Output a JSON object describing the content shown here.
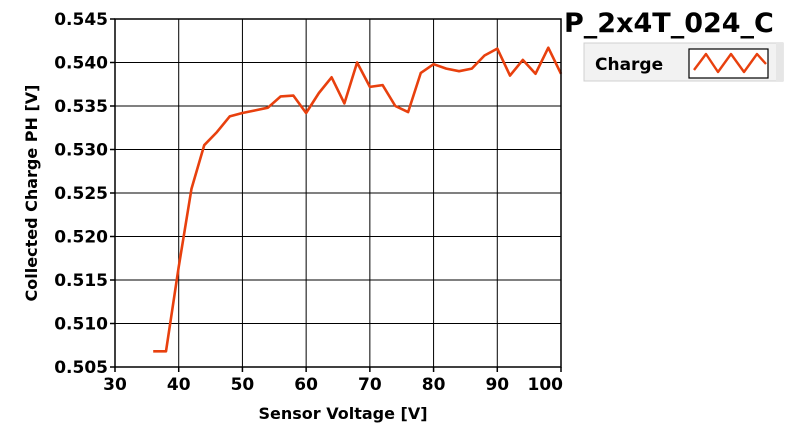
{
  "chart_data": {
    "type": "line",
    "title": "P_2x4T_024_C",
    "xlabel": "Sensor Voltage [V]",
    "ylabel": "Collected Charge PH [V]",
    "xlim": [
      30,
      100
    ],
    "ylim": [
      0.505,
      0.545
    ],
    "xticks": [
      "30",
      "40",
      "50",
      "60",
      "70",
      "80",
      "90",
      "100"
    ],
    "yticks": [
      "0.505",
      "0.510",
      "0.515",
      "0.520",
      "0.525",
      "0.530",
      "0.535",
      "0.540",
      "0.545"
    ],
    "grid": true,
    "legend_position": "top-right",
    "series": [
      {
        "name": "Charge",
        "color": "#e8400e",
        "x": [
          36,
          38,
          40,
          42,
          44,
          46,
          48,
          50,
          52,
          54,
          56,
          58,
          60,
          62,
          64,
          66,
          68,
          70,
          72,
          74,
          76,
          78,
          80,
          82,
          84,
          86,
          88,
          90,
          92,
          94,
          96,
          98,
          100
        ],
        "y": [
          0.5068,
          0.5068,
          0.5165,
          0.5255,
          0.5305,
          0.532,
          0.5338,
          0.5342,
          0.5345,
          0.5348,
          0.5361,
          0.5362,
          0.5342,
          0.5365,
          0.5383,
          0.5353,
          0.54,
          0.5372,
          0.5374,
          0.535,
          0.5343,
          0.5388,
          0.5398,
          0.5393,
          0.539,
          0.5393,
          0.5408,
          0.5416,
          0.5385,
          0.5403,
          0.5387,
          0.5417,
          0.5387
        ]
      }
    ]
  }
}
